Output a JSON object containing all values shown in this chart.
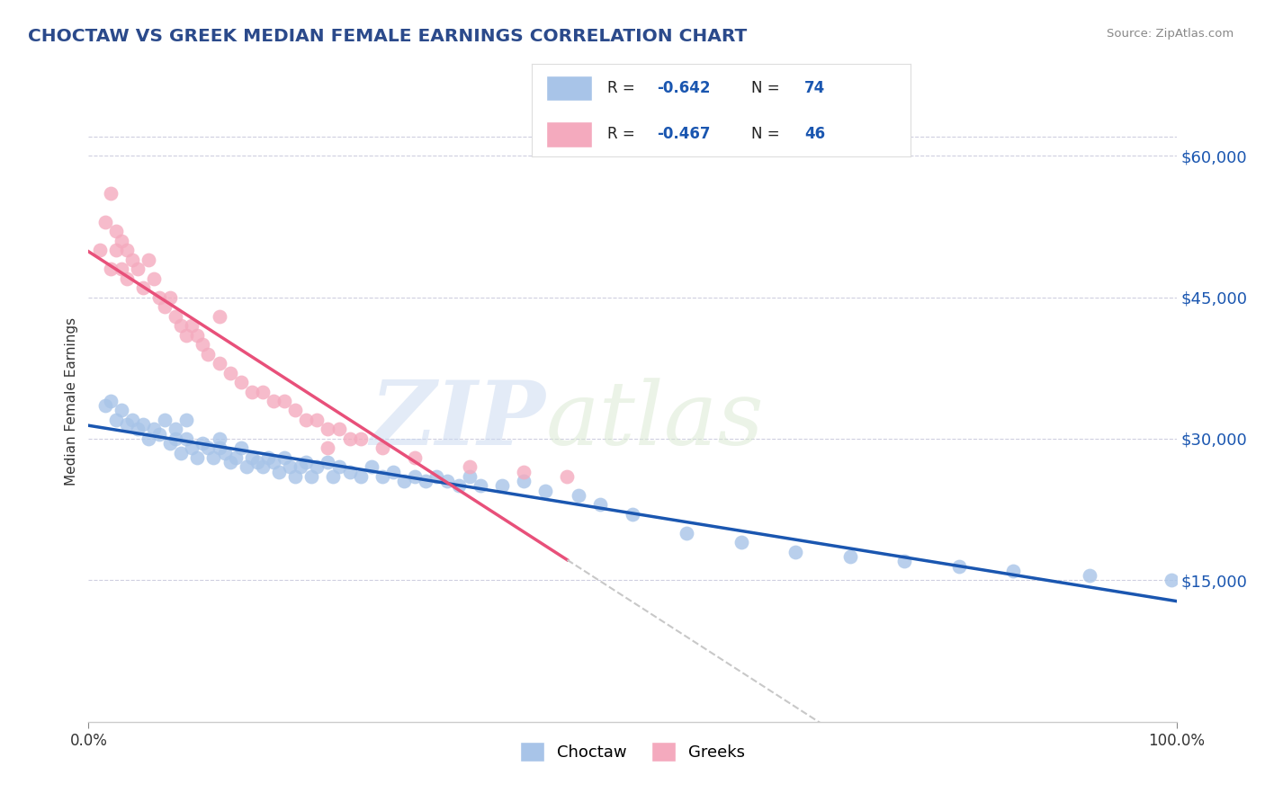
{
  "title": "CHOCTAW VS GREEK MEDIAN FEMALE EARNINGS CORRELATION CHART",
  "source_text": "Source: ZipAtlas.com",
  "ylabel": "Median Female Earnings",
  "x_min": 0.0,
  "x_max": 100.0,
  "y_min": 0,
  "y_max": 68000,
  "y_ticks": [
    15000,
    30000,
    45000,
    60000
  ],
  "y_tick_labels": [
    "$15,000",
    "$30,000",
    "$45,000",
    "$60,000"
  ],
  "x_ticks": [
    0,
    100
  ],
  "x_tick_labels": [
    "0.0%",
    "100.0%"
  ],
  "choctaw_color": "#A8C4E8",
  "greek_color": "#F4AABE",
  "choctaw_line_color": "#1A56B0",
  "greek_line_color": "#E8507A",
  "trend_ext_color": "#C8C8C8",
  "background_color": "#FFFFFF",
  "grid_color": "#B0B0CC",
  "R_choctaw": -0.642,
  "N_choctaw": 74,
  "R_greek": -0.467,
  "N_greek": 46,
  "legend_label_choctaw": "Choctaw",
  "legend_label_greek": "Greeks",
  "watermark_zip": "ZIP",
  "watermark_atlas": "atlas",
  "choctaw_x": [
    1.5,
    2.0,
    2.5,
    3.0,
    3.5,
    4.0,
    4.5,
    5.0,
    5.5,
    6.0,
    6.5,
    7.0,
    7.5,
    8.0,
    8.0,
    8.5,
    9.0,
    9.0,
    9.5,
    10.0,
    10.5,
    11.0,
    11.5,
    12.0,
    12.0,
    12.5,
    13.0,
    13.5,
    14.0,
    14.5,
    15.0,
    15.5,
    16.0,
    16.5,
    17.0,
    17.5,
    18.0,
    18.5,
    19.0,
    19.5,
    20.0,
    20.5,
    21.0,
    22.0,
    22.5,
    23.0,
    24.0,
    25.0,
    26.0,
    27.0,
    28.0,
    29.0,
    30.0,
    31.0,
    32.0,
    33.0,
    34.0,
    35.0,
    36.0,
    38.0,
    40.0,
    42.0,
    45.0,
    47.0,
    50.0,
    55.0,
    60.0,
    65.0,
    70.0,
    75.0,
    80.0,
    85.0,
    92.0,
    99.5
  ],
  "choctaw_y": [
    33500,
    34000,
    32000,
    33000,
    31500,
    32000,
    31000,
    31500,
    30000,
    31000,
    30500,
    32000,
    29500,
    30000,
    31000,
    28500,
    30000,
    32000,
    29000,
    28000,
    29500,
    29000,
    28000,
    29000,
    30000,
    28500,
    27500,
    28000,
    29000,
    27000,
    28000,
    27500,
    27000,
    28000,
    27500,
    26500,
    28000,
    27000,
    26000,
    27000,
    27500,
    26000,
    27000,
    27500,
    26000,
    27000,
    26500,
    26000,
    27000,
    26000,
    26500,
    25500,
    26000,
    25500,
    26000,
    25500,
    25000,
    26000,
    25000,
    25000,
    25500,
    24500,
    24000,
    23000,
    22000,
    20000,
    19000,
    18000,
    17500,
    17000,
    16500,
    16000,
    15500,
    15000
  ],
  "greek_x": [
    1.0,
    1.5,
    2.0,
    2.0,
    2.5,
    2.5,
    3.0,
    3.0,
    3.5,
    3.5,
    4.0,
    4.5,
    5.0,
    5.5,
    6.0,
    6.5,
    7.0,
    7.5,
    8.0,
    8.5,
    9.0,
    9.5,
    10.0,
    10.5,
    11.0,
    12.0,
    13.0,
    14.0,
    15.0,
    16.0,
    17.0,
    18.0,
    19.0,
    20.0,
    21.0,
    22.0,
    23.0,
    24.0,
    25.0,
    27.0,
    30.0,
    35.0,
    40.0,
    44.0,
    12.0,
    22.0
  ],
  "greek_y": [
    50000,
    53000,
    56000,
    48000,
    50000,
    52000,
    51000,
    48000,
    50000,
    47000,
    49000,
    48000,
    46000,
    49000,
    47000,
    45000,
    44000,
    45000,
    43000,
    42000,
    41000,
    42000,
    41000,
    40000,
    39000,
    38000,
    37000,
    36000,
    35000,
    35000,
    34000,
    34000,
    33000,
    32000,
    32000,
    31000,
    31000,
    30000,
    30000,
    29000,
    28000,
    27000,
    26500,
    26000,
    43000,
    29000
  ]
}
